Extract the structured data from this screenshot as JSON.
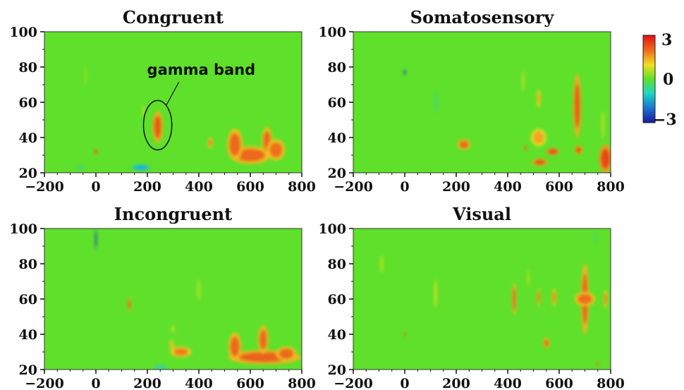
{
  "chart_data": {
    "type": "heatmap",
    "background_color": "#5fe02a",
    "colormap": [
      "#1a1aa0",
      "#1ec8e0",
      "#5fe02a",
      "#f0e020",
      "#f08020",
      "#e03010"
    ],
    "xlim": [
      -200,
      800
    ],
    "ylim": [
      20,
      100
    ],
    "xticks": [
      "−200",
      "0",
      "200",
      "400",
      "600",
      "800"
    ],
    "yticks": [
      "20",
      "40",
      "60",
      "80",
      "100"
    ],
    "colorbar": {
      "min": -3,
      "max": 3,
      "ticks": [
        "3",
        "0",
        "−3"
      ]
    },
    "panels": [
      {
        "title": "Congruent",
        "annotation": {
          "text": "gamma band",
          "circle_center": [
            240,
            47
          ],
          "radius_ms": 55,
          "radius_hz": 14
        },
        "blobs": [
          {
            "x": 240,
            "y": 46,
            "rx": 20,
            "ry": 9,
            "level": 2.2
          },
          {
            "x": 600,
            "y": 30,
            "rx": 80,
            "ry": 5,
            "level": 2.0
          },
          {
            "x": 540,
            "y": 36,
            "rx": 30,
            "ry": 9,
            "level": 2.0
          },
          {
            "x": 665,
            "y": 38,
            "rx": 20,
            "ry": 8,
            "level": 2.0
          },
          {
            "x": 700,
            "y": 33,
            "rx": 35,
            "ry": 6,
            "level": 1.9
          },
          {
            "x": 445,
            "y": 37,
            "rx": 10,
            "ry": 3,
            "level": 1.6
          },
          {
            "x": 185,
            "y": 55,
            "rx": 5,
            "ry": 3,
            "level": 0.9
          },
          {
            "x": 0,
            "y": 32,
            "rx": 6,
            "ry": 1.5,
            "level": 2.8
          },
          {
            "x": -40,
            "y": 75,
            "rx": 4,
            "ry": 5,
            "level": 0.6
          },
          {
            "x": 175,
            "y": 23,
            "rx": 35,
            "ry": 1.8,
            "level": -1.2
          },
          {
            "x": -60,
            "y": 23,
            "rx": 14,
            "ry": 1.2,
            "level": -0.8
          }
        ]
      },
      {
        "title": "Somatosensory",
        "annotation": null,
        "blobs": [
          {
            "x": 670,
            "y": 58,
            "rx": 15,
            "ry": 18,
            "level": 2.2
          },
          {
            "x": 230,
            "y": 36,
            "rx": 25,
            "ry": 3,
            "level": 2.0
          },
          {
            "x": 520,
            "y": 40,
            "rx": 30,
            "ry": 5,
            "level": 1.3
          },
          {
            "x": 525,
            "y": 26,
            "rx": 30,
            "ry": 2,
            "level": 2.3
          },
          {
            "x": 575,
            "y": 32,
            "rx": 25,
            "ry": 2,
            "level": 2.5
          },
          {
            "x": 675,
            "y": 33,
            "rx": 15,
            "ry": 2.5,
            "level": 2.3
          },
          {
            "x": 780,
            "y": 28,
            "rx": 25,
            "ry": 8,
            "level": 2.5
          },
          {
            "x": 470,
            "y": 34,
            "rx": 5,
            "ry": 1.5,
            "level": 2.6
          },
          {
            "x": 520,
            "y": 62,
            "rx": 8,
            "ry": 5,
            "level": 1.3
          },
          {
            "x": 460,
            "y": 72,
            "rx": 6,
            "ry": 6,
            "level": 0.7
          },
          {
            "x": 770,
            "y": 47,
            "rx": 6,
            "ry": 8,
            "level": 0.8
          },
          {
            "x": 120,
            "y": 60,
            "rx": 6,
            "ry": 6,
            "level": -0.6
          },
          {
            "x": 0,
            "y": 77,
            "rx": 4,
            "ry": 1.5,
            "level": -3.0
          }
        ]
      },
      {
        "title": "Incongruent",
        "annotation": null,
        "blobs": [
          {
            "x": 655,
            "y": 27,
            "rx": 140,
            "ry": 4,
            "level": 2.1
          },
          {
            "x": 540,
            "y": 33,
            "rx": 25,
            "ry": 8,
            "level": 2.0
          },
          {
            "x": 650,
            "y": 37,
            "rx": 20,
            "ry": 8,
            "level": 2.0
          },
          {
            "x": 740,
            "y": 29,
            "rx": 40,
            "ry": 4,
            "level": 2.0
          },
          {
            "x": 330,
            "y": 30,
            "rx": 40,
            "ry": 3,
            "level": 1.7
          },
          {
            "x": 295,
            "y": 34,
            "rx": 8,
            "ry": 3,
            "level": 1.2
          },
          {
            "x": 130,
            "y": 57,
            "rx": 6,
            "ry": 4,
            "level": 2.2
          },
          {
            "x": 300,
            "y": 43,
            "rx": 8,
            "ry": 2,
            "level": 0.8
          },
          {
            "x": 400,
            "y": 65,
            "rx": 8,
            "ry": 6,
            "level": 0.6
          },
          {
            "x": 0,
            "y": 94,
            "rx": 3,
            "ry": 6,
            "level": -3.0
          },
          {
            "x": 250,
            "y": 21,
            "rx": 25,
            "ry": 1.5,
            "level": -1.0
          }
        ]
      },
      {
        "title": "Visual",
        "annotation": null,
        "blobs": [
          {
            "x": 700,
            "y": 60,
            "rx": 15,
            "ry": 20,
            "level": 2.1
          },
          {
            "x": 700,
            "y": 60,
            "rx": 40,
            "ry": 4,
            "level": 1.9
          },
          {
            "x": 425,
            "y": 60,
            "rx": 8,
            "ry": 9,
            "level": 2.0
          },
          {
            "x": 520,
            "y": 61,
            "rx": 6,
            "ry": 5,
            "level": 1.8
          },
          {
            "x": 580,
            "y": 61,
            "rx": 8,
            "ry": 5,
            "level": 1.6
          },
          {
            "x": 780,
            "y": 60,
            "rx": 8,
            "ry": 5,
            "level": 1.6
          },
          {
            "x": 550,
            "y": 35,
            "rx": 12,
            "ry": 3,
            "level": 2.0
          },
          {
            "x": 120,
            "y": 63,
            "rx": 6,
            "ry": 8,
            "level": 1.0
          },
          {
            "x": -90,
            "y": 80,
            "rx": 6,
            "ry": 5,
            "level": 0.8
          },
          {
            "x": 0,
            "y": 40,
            "rx": 3,
            "ry": 1.2,
            "level": 2.8
          },
          {
            "x": 480,
            "y": 72,
            "rx": 5,
            "ry": 5,
            "level": 0.7
          },
          {
            "x": 740,
            "y": 95,
            "rx": 5,
            "ry": 4,
            "level": -0.5
          },
          {
            "x": 750,
            "y": 23,
            "rx": 5,
            "ry": 1,
            "level": 2.5
          }
        ]
      }
    ]
  }
}
